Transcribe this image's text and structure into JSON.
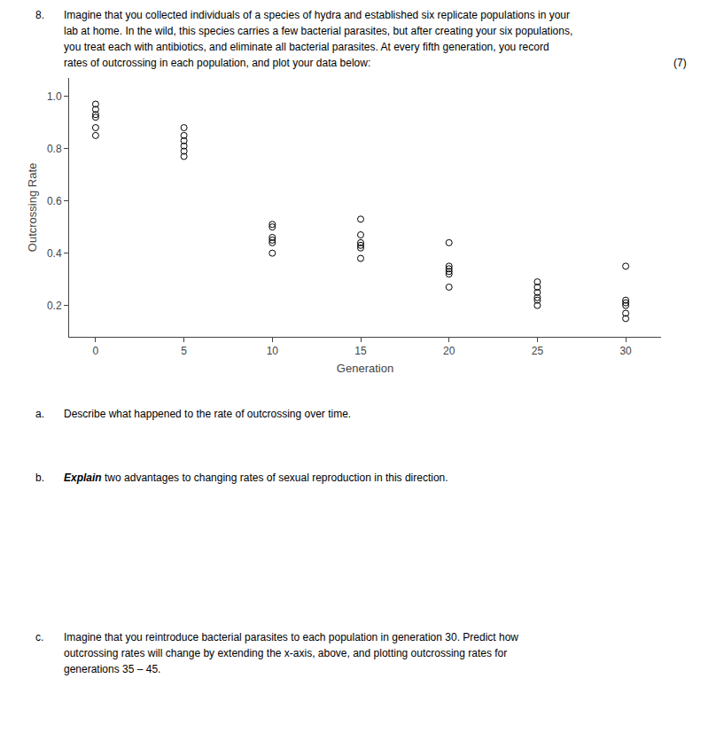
{
  "chart_data": {
    "type": "scatter",
    "annotations": [
      "8.",
      "Imagine that you collected individuals of a species of hydra and established six replicate populations in your",
      "lab at home. In the wild, this species carries a few bacterial parasites, but after creating your six populations,",
      "you treat each with antibiotics, and eliminate all bacterial parasites. At every fifth generation, you record",
      "rates of outcrossing in each population, and plot your data below:",
      "(7)",
      "a.",
      "Describe what happened to the rate of outcrossing over time.",
      "b.",
      "Explain",
      " two advantages to changing rates of sexual reproduction in this direction.",
      "c.",
      "Imagine that you reintroduce bacterial parasites to each population in generation 30. Predict how",
      "outcrossing rates will change by extending the x-axis, above, and plotting outcrossing rates for",
      "generations 35 – 45."
    ],
    "xlabel": "Generation",
    "ylabel": "Outcrossing Rate",
    "x": [
      0,
      0,
      0,
      0,
      0,
      0,
      5,
      5,
      5,
      5,
      5,
      5,
      10,
      10,
      10,
      10,
      10,
      10,
      15,
      15,
      15,
      15,
      15,
      15,
      20,
      20,
      20,
      20,
      20,
      20,
      25,
      25,
      25,
      25,
      25,
      25,
      30,
      30,
      30,
      30,
      30,
      30
    ],
    "values": [
      0.97,
      0.95,
      0.93,
      0.92,
      0.88,
      0.85,
      0.88,
      0.85,
      0.83,
      0.81,
      0.79,
      0.77,
      0.51,
      0.5,
      0.46,
      0.45,
      0.44,
      0.4,
      0.53,
      0.47,
      0.44,
      0.43,
      0.42,
      0.38,
      0.44,
      0.35,
      0.34,
      0.33,
      0.32,
      0.27,
      0.29,
      0.27,
      0.25,
      0.23,
      0.22,
      0.2,
      0.35,
      0.22,
      0.21,
      0.2,
      0.17,
      0.15
    ],
    "xlim": [
      -1.5,
      32
    ],
    "ylim": [
      0.08,
      1.07
    ],
    "xticks": [
      0,
      5,
      10,
      15,
      20,
      25,
      30
    ],
    "yticks": [
      0.2,
      0.4,
      0.6,
      0.8,
      {
        "value": 1.0,
        "label": "1.0"
      }
    ],
    "color": "black",
    "marker": "circle-open",
    "grid": false
  }
}
